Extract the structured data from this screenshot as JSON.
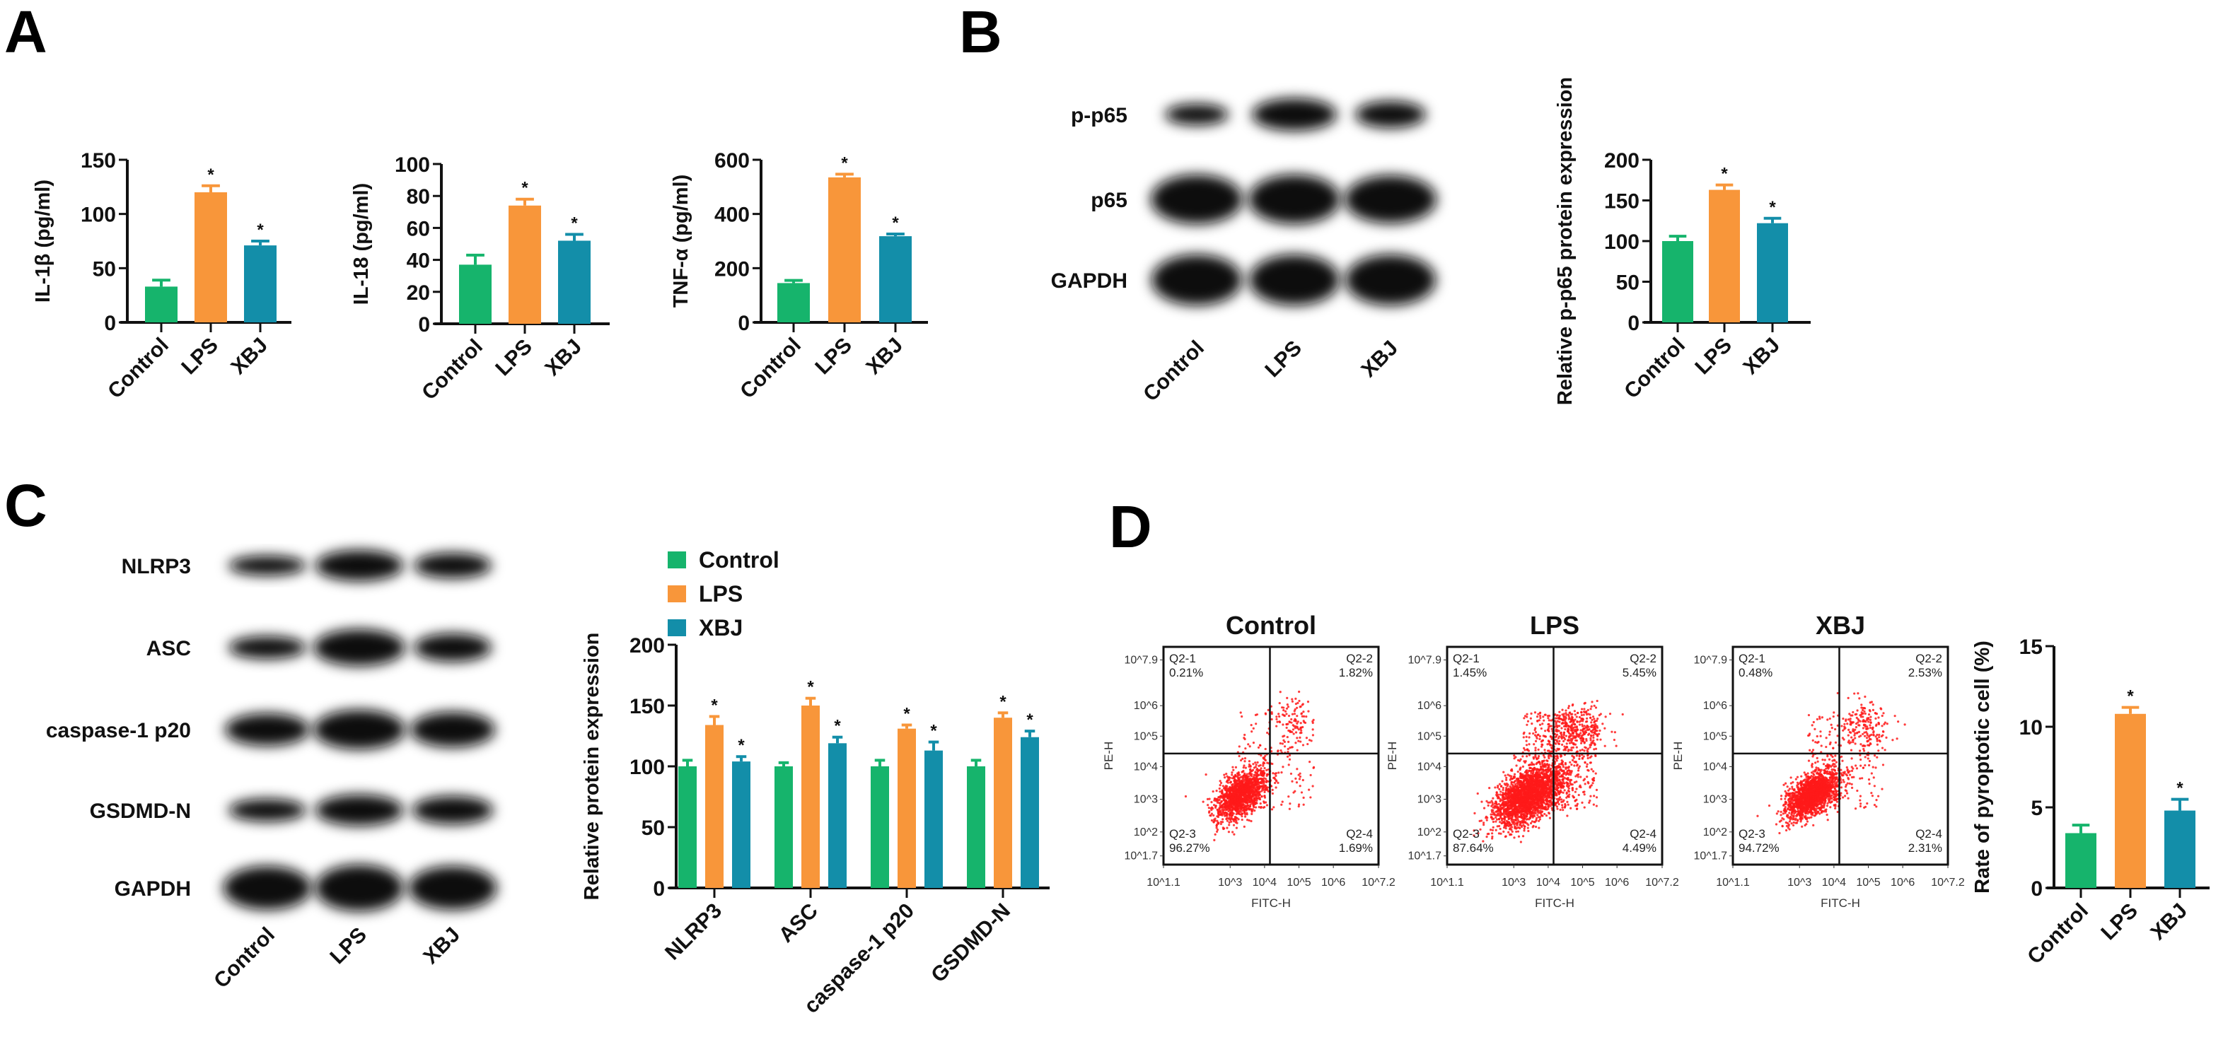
{
  "panels": {
    "a": "A",
    "b": "B",
    "c": "C",
    "d": "D"
  },
  "colors": {
    "Control": "#16b46c",
    "LPS": "#f8963a",
    "XBJ": "#138ea9",
    "scatter": "#ff1a1a"
  },
  "blot_b": {
    "rows": [
      "p-p65",
      "p65",
      "GAPDH"
    ],
    "lanes": [
      "Control",
      "LPS",
      "XBJ"
    ]
  },
  "blot_c": {
    "rows": [
      "NLRP3",
      "ASC",
      "caspase-1 p20",
      "GSDMD-N",
      "GAPDH"
    ],
    "lanes": [
      "Control",
      "LPS",
      "XBJ"
    ]
  },
  "chart_data": [
    {
      "id": "il1b",
      "type": "bar",
      "panel": "A",
      "ylabel": "IL-1β (pg/ml)",
      "categories": [
        "Control",
        "LPS",
        "XBJ"
      ],
      "values": [
        33,
        120,
        71
      ],
      "errors": [
        6,
        6,
        4
      ],
      "significance": [
        "",
        "*",
        "*"
      ],
      "ylim": [
        0,
        150
      ],
      "yticks": [
        0,
        50,
        100,
        150
      ]
    },
    {
      "id": "il18",
      "type": "bar",
      "panel": "A",
      "ylabel": "IL-18 (pg/ml)",
      "categories": [
        "Control",
        "LPS",
        "XBJ"
      ],
      "values": [
        37,
        74,
        52
      ],
      "errors": [
        6,
        4,
        4
      ],
      "significance": [
        "",
        "*",
        "*"
      ],
      "ylim": [
        0,
        100
      ],
      "yticks": [
        0,
        20,
        40,
        60,
        80,
        100
      ]
    },
    {
      "id": "tnfa",
      "type": "bar",
      "panel": "A",
      "ylabel": "TNF-α (pg/ml)",
      "categories": [
        "Control",
        "LPS",
        "XBJ"
      ],
      "values": [
        145,
        535,
        318
      ],
      "errors": [
        10,
        12,
        8
      ],
      "significance": [
        "",
        "*",
        "*"
      ],
      "ylim": [
        0,
        600
      ],
      "yticks": [
        0,
        200,
        400,
        600
      ]
    },
    {
      "id": "pp65",
      "type": "bar",
      "panel": "B",
      "ylabel": "Relative p-p65 protein expression",
      "categories": [
        "Control",
        "LPS",
        "XBJ"
      ],
      "values": [
        100,
        163,
        122
      ],
      "errors": [
        6,
        6,
        6
      ],
      "significance": [
        "",
        "*",
        "*"
      ],
      "ylim": [
        0,
        200
      ],
      "yticks": [
        0,
        50,
        100,
        150,
        200
      ]
    },
    {
      "id": "inflammasome",
      "type": "bar",
      "panel": "C",
      "ylabel": "Relative protein expression",
      "categories": [
        "NLRP3",
        "ASC",
        "caspase-1 p20",
        "GSDMD-N"
      ],
      "series": [
        {
          "name": "Control",
          "values": [
            100,
            100,
            100,
            100
          ],
          "errors": [
            5,
            3,
            5,
            5
          ],
          "significance": [
            "",
            "",
            "",
            ""
          ]
        },
        {
          "name": "LPS",
          "values": [
            134,
            150,
            131,
            140
          ],
          "errors": [
            7,
            6,
            3,
            4
          ],
          "significance": [
            "*",
            "*",
            "*",
            "*"
          ]
        },
        {
          "name": "XBJ",
          "values": [
            104,
            119,
            113,
            124
          ],
          "errors": [
            4,
            5,
            7,
            5
          ],
          "significance": [
            "*",
            "*",
            "*",
            "*"
          ]
        }
      ],
      "legend": "top-left",
      "ylim": [
        0,
        200
      ],
      "yticks": [
        0,
        50,
        100,
        150,
        200
      ]
    },
    {
      "id": "flow",
      "type": "scatter",
      "panel": "D",
      "xlabel": "FITC-H",
      "ylabel": "PE-H",
      "xticks": [
        "10^1.1",
        "10^3",
        "10^4",
        "10^5",
        "10^6",
        "10^7.2"
      ],
      "yticks": [
        "10^1.7",
        "10^2",
        "10^3",
        "10^4",
        "10^5",
        "10^6",
        "10^7.9"
      ],
      "plots": [
        {
          "title": "Control",
          "quadrants": {
            "Q2-1": "0.21%",
            "Q2-2": "1.82%",
            "Q2-3": "96.27%",
            "Q2-4": "1.69%"
          }
        },
        {
          "title": "LPS",
          "quadrants": {
            "Q2-1": "1.45%",
            "Q2-2": "5.45%",
            "Q2-3": "87.64%",
            "Q2-4": "4.49%"
          }
        },
        {
          "title": "XBJ",
          "quadrants": {
            "Q2-1": "0.48%",
            "Q2-2": "2.53%",
            "Q2-3": "94.72%",
            "Q2-4": "2.31%"
          }
        }
      ]
    },
    {
      "id": "pyroptosis",
      "type": "bar",
      "panel": "D",
      "ylabel": "Rate of pyroptotic cell (%)",
      "categories": [
        "Control",
        "LPS",
        "XBJ"
      ],
      "values": [
        3.4,
        10.8,
        4.8
      ],
      "errors": [
        0.5,
        0.4,
        0.7
      ],
      "significance": [
        "",
        "*",
        "*"
      ],
      "ylim": [
        0,
        15
      ],
      "yticks": [
        0,
        5,
        10,
        15
      ]
    }
  ]
}
